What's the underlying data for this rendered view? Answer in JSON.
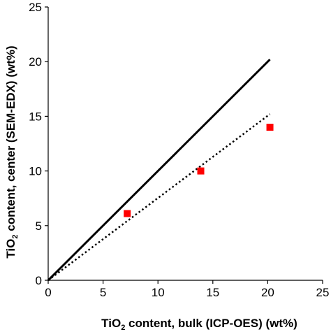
{
  "chart_data": {
    "type": "scatter",
    "title": "",
    "xlabel": {
      "prefix": "TiO",
      "subscript": "2",
      "suffix": " content, bulk (ICP-OES) (wt%)"
    },
    "ylabel": {
      "prefix": "TiO",
      "subscript": "2",
      "suffix": " content, center (SEM-EDX) (wt%)"
    },
    "xlim": [
      0,
      25
    ],
    "ylim": [
      0,
      25
    ],
    "xticks": [
      "0",
      "5",
      "10",
      "15",
      "20",
      "25"
    ],
    "yticks": [
      "0",
      "5",
      "10",
      "15",
      "20",
      "25"
    ],
    "grid": false,
    "legend": "none",
    "series": [
      {
        "kind": "points",
        "marker": "square",
        "color": "#ff0000",
        "x": [
          7.2,
          13.9,
          20.2
        ],
        "y": [
          6.1,
          10.0,
          14.0
        ]
      },
      {
        "kind": "line",
        "style": "solid",
        "color": "#000000",
        "x": [
          0,
          20.2
        ],
        "y": [
          0,
          20.2
        ]
      },
      {
        "kind": "line",
        "style": "dotted",
        "color": "#000000",
        "x": [
          0,
          20.2
        ],
        "y": [
          0,
          15.2
        ]
      }
    ]
  }
}
